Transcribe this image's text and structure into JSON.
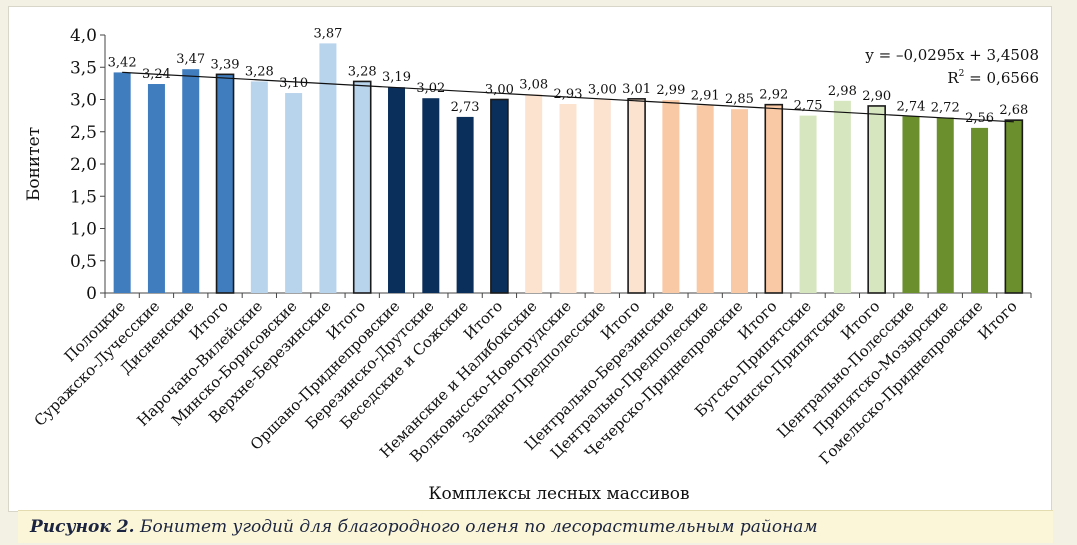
{
  "caption": {
    "label": "Рисунок 2.",
    "text": " Бонитет угодий для благородного оленя по лесорастительным районам"
  },
  "chart_data": {
    "type": "bar",
    "ylabel": "Бонитет",
    "xlabel": "Комплексы лесных массивов",
    "ylim": [
      0,
      4.0
    ],
    "yticks": [
      "0",
      "0,5",
      "1,0",
      "1,5",
      "2,0",
      "2,5",
      "3,0",
      "3,5",
      "4,0"
    ],
    "grid": false,
    "categories": [
      "Полоцкие",
      "Суражско-Лучесские",
      "Дисненские",
      "Итого",
      "Нарочано-Вилейские",
      "Минско-Борисовские",
      "Верхне-Березинские",
      "Итого",
      "Оршано-Приднепровские",
      "Березинско-Друтские",
      "Беседские и Сожские",
      "Итого",
      "Неманские и Налибокские",
      "Волковысско-Новогрудские",
      "Западно-Предполесские",
      "Итого",
      "Центрально-Березинские",
      "Центрально-Предполеские",
      "Чечерско-Приднепровские",
      "Итого",
      "Бугско-Припятские",
      "Пинско-Припятские",
      "Итого",
      "Центрально-Полесские",
      "Припятско-Мозырские",
      "Гомельско-Приднепровские",
      "Итого"
    ],
    "values": [
      3.42,
      3.24,
      3.47,
      3.39,
      3.28,
      3.1,
      3.87,
      3.28,
      3.19,
      3.02,
      2.73,
      3.0,
      3.08,
      2.93,
      3.0,
      3.01,
      2.99,
      2.91,
      2.85,
      2.92,
      2.75,
      2.98,
      2.9,
      2.74,
      2.72,
      2.56,
      2.68
    ],
    "value_labels": [
      "3,42",
      "3,24",
      "3,47",
      "3,39",
      "3,28",
      "3,10",
      "3,87",
      "3,28",
      "3,19",
      "3,02",
      "2,73",
      "3,00",
      "3,08",
      "2,93",
      "3,00",
      "3,01",
      "2,99",
      "2,91",
      "2,85",
      "2,92",
      "2,75",
      "2,98",
      "2,90",
      "2,74",
      "2,72",
      "2,56",
      "2,68"
    ],
    "colors": [
      "#3f7dbf",
      "#3f7dbf",
      "#3f7dbf",
      "#3f7dbf",
      "#b8d3ec",
      "#b8d3ec",
      "#b8d3ec",
      "#b8d3ec",
      "#0b2f5b",
      "#0b2f5b",
      "#0b2f5b",
      "#0b2f5b",
      "#fce3d0",
      "#fce3d0",
      "#fce3d0",
      "#fce3d0",
      "#f9c9a6",
      "#f9c9a6",
      "#f9c9a6",
      "#f9c9a6",
      "#d6e6bf",
      "#d6e6bf",
      "#d6e6bf",
      "#6b8f2c",
      "#6b8f2c",
      "#6b8f2c",
      "#6b8f2c"
    ],
    "trendline": {
      "equation": "y = –0,0295x + 3,4508",
      "r2_label": "R",
      "r2_sup": "2",
      "r2_value": " = 0,6566",
      "slope": -0.0295,
      "intercept": 3.4508
    }
  }
}
